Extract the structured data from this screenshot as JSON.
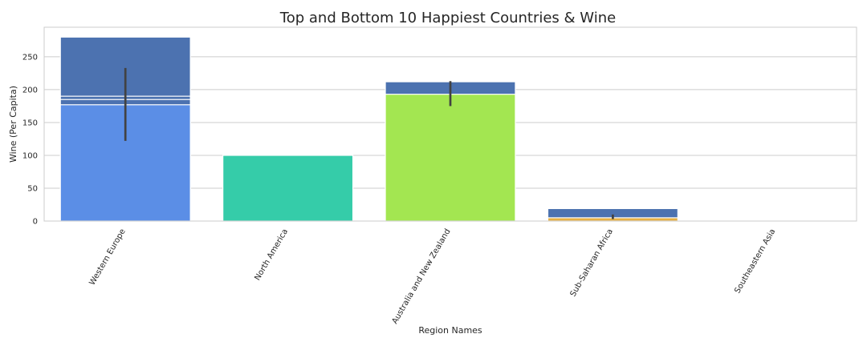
{
  "chart_data": {
    "type": "bar",
    "title": "Top and Bottom 10 Happiest Countries & Wine",
    "xlabel": "Region Names",
    "ylabel": "Wine (Per Capita)",
    "ylim": [
      0,
      295
    ],
    "yticks": [
      0,
      50,
      100,
      150,
      200,
      250
    ],
    "grid": true,
    "categories": [
      "Western Europe",
      "North America",
      "Australia and New Zealand",
      "Sub-Saharan Africa",
      "Southeastern Asia"
    ],
    "layers": [
      {
        "values": [
          280,
          null,
          212,
          19,
          null
        ],
        "colors": [
          "#4c72b0",
          null,
          "#4c72b0",
          "#4c72b0",
          null
        ]
      },
      {
        "values": [
          190,
          null,
          null,
          null,
          null
        ],
        "colors": [
          "#4c72b0",
          null,
          null,
          null,
          null
        ]
      },
      {
        "values": [
          185,
          null,
          null,
          null,
          null
        ],
        "colors": [
          "#4c72b0",
          null,
          null,
          null,
          null
        ]
      },
      {
        "values": [
          177,
          100,
          193,
          5,
          0
        ],
        "colors": [
          "#5b8ee6",
          "#35cca9",
          "#a3e651",
          "#e6b045",
          "#e6b045"
        ],
        "error_low": [
          122,
          null,
          175,
          3,
          null
        ],
        "error_high": [
          233,
          null,
          213,
          10,
          null
        ]
      }
    ]
  }
}
